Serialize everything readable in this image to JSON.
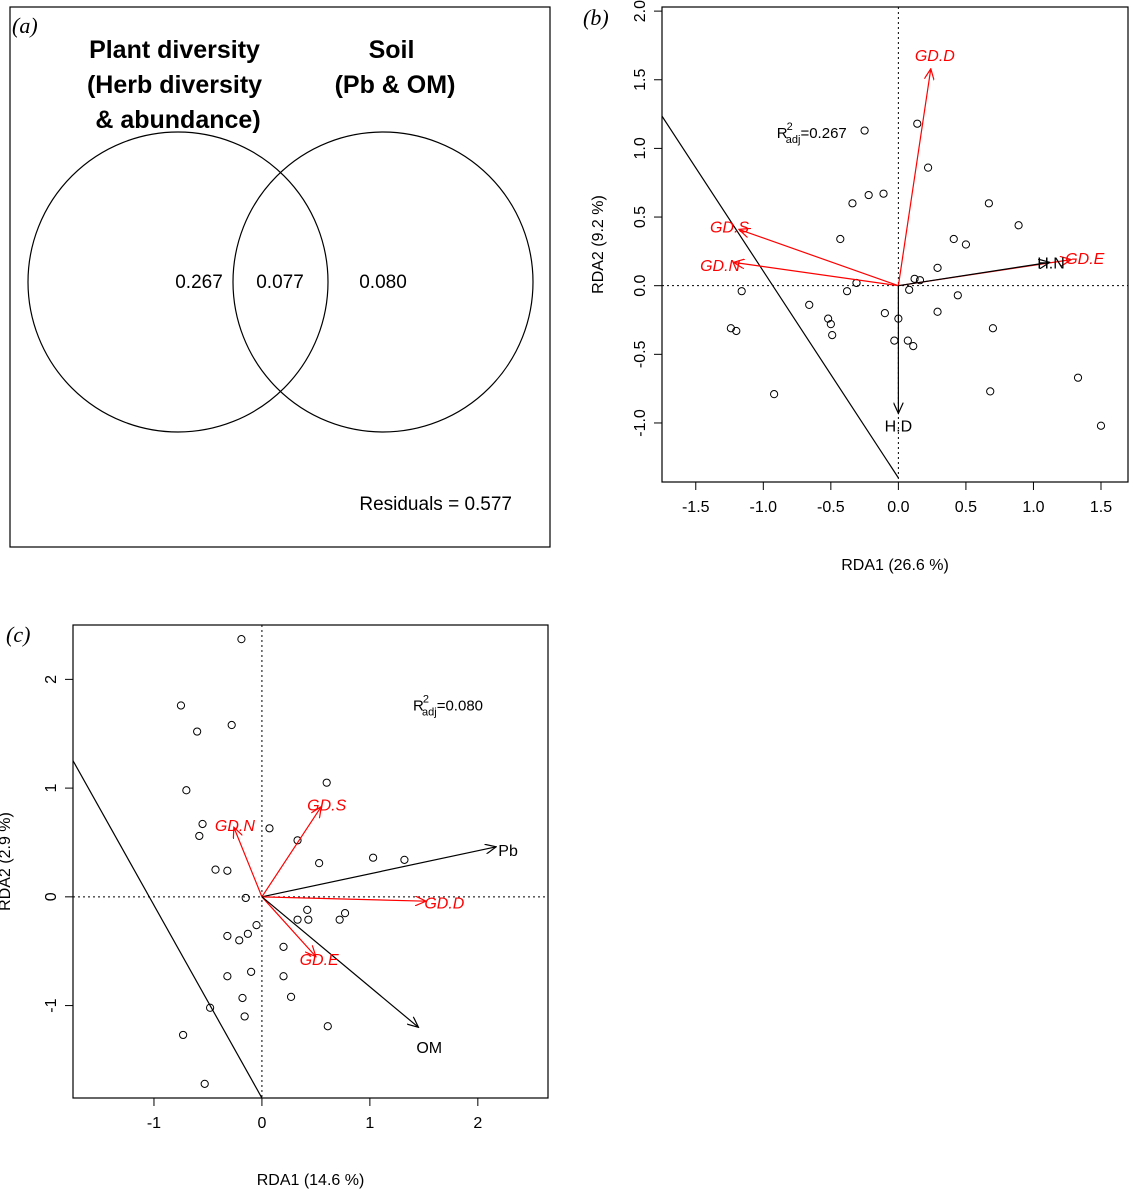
{
  "panel_a": {
    "label": "(a)",
    "left_title": [
      "Plant diversity",
      "(Herb diversity",
      "& abundance)"
    ],
    "right_title": [
      "Soil",
      "(Pb & OM)"
    ],
    "left_only": "0.267",
    "shared": "0.077",
    "right_only": "0.080",
    "residuals": "Residuals = 0.577"
  },
  "chart_data": [
    {
      "type": "scatter",
      "id": "b",
      "label": "(b)",
      "xlabel": "RDA1 (26.6 %)",
      "ylabel": "RDA2 (9.2 %)",
      "xlim": [
        -1.75,
        1.7
      ],
      "ylim": [
        -1.43,
        2.03
      ],
      "xticks": [
        -1.5,
        -1.0,
        -0.5,
        0.0,
        0.5,
        1.0,
        1.5
      ],
      "xtick_labels": [
        "-1.5",
        "-1.0",
        "-0.5",
        "0.0",
        "0.5",
        "1.0",
        "1.5"
      ],
      "yticks": [
        -1.0,
        -0.5,
        0.0,
        0.5,
        1.0,
        1.5,
        2.0
      ],
      "ytick_labels": [
        "-1.0",
        "-0.5",
        "0.0",
        "0.5",
        "1.0",
        "1.5",
        "2.0"
      ],
      "annotation": {
        "x": -0.9,
        "y": 1.12,
        "text": "R",
        "sup": "2",
        "sub": "adj",
        "value": "=0.267"
      },
      "boundary_line": [
        [
          -1.76,
          1.25
        ],
        [
          0.0,
          -1.4
        ]
      ],
      "points": [
        [
          -0.25,
          1.13
        ],
        [
          0.14,
          1.18
        ],
        [
          0.22,
          0.86
        ],
        [
          -0.34,
          0.6
        ],
        [
          -0.22,
          0.66
        ],
        [
          -0.11,
          0.67
        ],
        [
          0.67,
          0.6
        ],
        [
          0.89,
          0.44
        ],
        [
          -0.43,
          0.34
        ],
        [
          0.41,
          0.34
        ],
        [
          0.5,
          0.3
        ],
        [
          0.29,
          0.13
        ],
        [
          -0.31,
          0.02
        ],
        [
          -0.38,
          -0.04
        ],
        [
          0.12,
          0.05
        ],
        [
          0.16,
          0.04
        ],
        [
          0.44,
          -0.07
        ],
        [
          0.08,
          -0.03
        ],
        [
          -1.16,
          -0.04
        ],
        [
          -0.66,
          -0.14
        ],
        [
          -0.1,
          -0.2
        ],
        [
          0.29,
          -0.19
        ],
        [
          -0.52,
          -0.24
        ],
        [
          -0.5,
          -0.28
        ],
        [
          0.0,
          -0.24
        ],
        [
          -1.24,
          -0.31
        ],
        [
          -1.2,
          -0.33
        ],
        [
          -0.49,
          -0.36
        ],
        [
          -0.03,
          -0.4
        ],
        [
          0.07,
          -0.4
        ],
        [
          0.11,
          -0.44
        ],
        [
          0.7,
          -0.31
        ],
        [
          -0.92,
          -0.79
        ],
        [
          0.68,
          -0.77
        ],
        [
          1.33,
          -0.67
        ],
        [
          1.5,
          -1.02
        ]
      ],
      "arrows": [
        {
          "name": "GD.D",
          "x": 0.24,
          "y": 1.58,
          "color": "#ff0000",
          "italic": true,
          "lx": 0.27,
          "ly": 1.68
        },
        {
          "name": "GD.S",
          "x": -1.18,
          "y": 0.41,
          "color": "#ff0000",
          "italic": true,
          "lx": -1.25,
          "ly": 0.43
        },
        {
          "name": "GD.N",
          "x": -1.22,
          "y": 0.17,
          "color": "#ff0000",
          "italic": true,
          "lx": -1.32,
          "ly": 0.15
        },
        {
          "name": "GD.E",
          "x": 1.28,
          "y": 0.19,
          "color": "#ff0000",
          "italic": true,
          "lx": 1.38,
          "ly": 0.2
        },
        {
          "name": "H.N",
          "x": 1.12,
          "y": 0.17,
          "color": "#000000",
          "italic": false,
          "lx": 1.13,
          "ly": 0.17
        },
        {
          "name": "H.D",
          "x": 0.0,
          "y": -0.93,
          "color": "#000000",
          "italic": false,
          "lx": 0.0,
          "ly": -1.02
        }
      ]
    },
    {
      "type": "scatter",
      "id": "c",
      "label": "(c)",
      "xlabel": "RDA1 (14.6 %)",
      "ylabel": "RDA2 (2.9 %)",
      "xlim": [
        -1.75,
        2.65
      ],
      "ylim": [
        -1.85,
        2.5
      ],
      "xticks": [
        -1,
        0,
        1,
        2
      ],
      "xtick_labels": [
        "-1",
        "0",
        "1",
        "2"
      ],
      "yticks": [
        -1,
        0,
        1,
        2
      ],
      "ytick_labels": [
        "-1",
        "0",
        "1",
        "2"
      ],
      "annotation": {
        "x": 1.4,
        "y": 1.77,
        "text": "R",
        "sup": "2",
        "sub": "adj",
        "value": "=0.080"
      },
      "boundary_line": [
        [
          -1.76,
          1.27
        ],
        [
          0.0,
          -1.85
        ]
      ],
      "points": [
        [
          -0.19,
          2.37
        ],
        [
          -0.75,
          1.76
        ],
        [
          -0.6,
          1.52
        ],
        [
          -0.28,
          1.58
        ],
        [
          -0.7,
          0.98
        ],
        [
          0.6,
          1.05
        ],
        [
          -0.55,
          0.67
        ],
        [
          0.07,
          0.63
        ],
        [
          -0.58,
          0.56
        ],
        [
          0.33,
          0.52
        ],
        [
          0.53,
          0.31
        ],
        [
          1.03,
          0.36
        ],
        [
          1.32,
          0.34
        ],
        [
          -0.43,
          0.25
        ],
        [
          -0.32,
          0.24
        ],
        [
          -0.15,
          -0.01
        ],
        [
          0.42,
          -0.12
        ],
        [
          0.77,
          -0.15
        ],
        [
          -0.05,
          -0.26
        ],
        [
          0.33,
          -0.21
        ],
        [
          0.43,
          -0.21
        ],
        [
          0.72,
          -0.21
        ],
        [
          -0.32,
          -0.36
        ],
        [
          -0.21,
          -0.4
        ],
        [
          -0.13,
          -0.34
        ],
        [
          0.2,
          -0.46
        ],
        [
          -0.1,
          -0.69
        ],
        [
          -0.32,
          -0.73
        ],
        [
          0.2,
          -0.73
        ],
        [
          -0.18,
          -0.93
        ],
        [
          0.27,
          -0.92
        ],
        [
          -0.16,
          -1.1
        ],
        [
          -0.48,
          -1.02
        ],
        [
          0.61,
          -1.19
        ],
        [
          -0.73,
          -1.27
        ],
        [
          -0.53,
          -1.72
        ]
      ],
      "arrows": [
        {
          "name": "GD.S",
          "x": 0.55,
          "y": 0.83,
          "color": "#ff0000",
          "italic": true,
          "lx": 0.6,
          "ly": 0.85
        },
        {
          "name": "GD.N",
          "x": -0.26,
          "y": 0.64,
          "color": "#ff0000",
          "italic": true,
          "lx": -0.25,
          "ly": 0.66
        },
        {
          "name": "Pb",
          "x": 2.17,
          "y": 0.46,
          "color": "#000000",
          "italic": false,
          "lx": 2.28,
          "ly": 0.43
        },
        {
          "name": "GD.D",
          "x": 1.52,
          "y": -0.04,
          "color": "#ff0000",
          "italic": true,
          "lx": 1.69,
          "ly": -0.05
        },
        {
          "name": "GD.E",
          "x": 0.5,
          "y": -0.55,
          "color": "#ff0000",
          "italic": true,
          "lx": 0.53,
          "ly": -0.57
        },
        {
          "name": "OM",
          "x": 1.45,
          "y": -1.2,
          "color": "#000000",
          "italic": false,
          "lx": 1.55,
          "ly": -1.38
        }
      ]
    }
  ]
}
